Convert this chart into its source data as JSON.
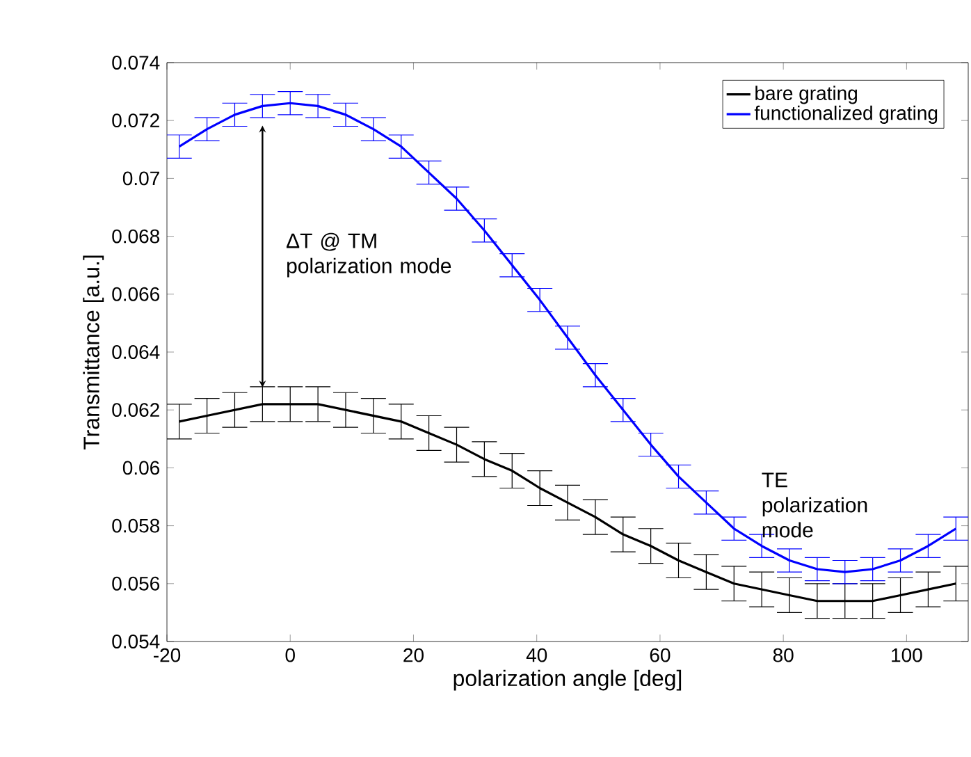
{
  "chart_data": {
    "type": "line",
    "xlabel": "polarization angle [deg]",
    "ylabel": "Transmittance [a.u.]",
    "x": [
      -18,
      -13.5,
      -9,
      -4.5,
      0,
      4.5,
      9,
      13.5,
      18,
      22.5,
      27,
      31.5,
      36,
      40.5,
      45,
      49.5,
      54,
      58.5,
      63,
      67.5,
      72,
      76.5,
      81,
      85.5,
      90,
      94.5,
      99,
      103.5,
      108
    ],
    "series": [
      {
        "name": "bare grating",
        "color": "#000000",
        "values": [
          0.0616,
          0.0618,
          0.062,
          0.0622,
          0.0622,
          0.0622,
          0.062,
          0.0618,
          0.0616,
          0.0612,
          0.0608,
          0.0603,
          0.0599,
          0.0593,
          0.0588,
          0.0583,
          0.0577,
          0.0573,
          0.0568,
          0.0564,
          0.056,
          0.0558,
          0.0556,
          0.0554,
          0.0554,
          0.0554,
          0.0556,
          0.0558,
          0.056
        ],
        "errors": [
          0.0006,
          0.0006,
          0.0006,
          0.0006,
          0.0006,
          0.0006,
          0.0006,
          0.0006,
          0.0006,
          0.0006,
          0.0006,
          0.0006,
          0.0006,
          0.0006,
          0.0006,
          0.0006,
          0.0006,
          0.0006,
          0.0006,
          0.0006,
          0.0006,
          0.0006,
          0.0006,
          0.0006,
          0.0006,
          0.0006,
          0.0006,
          0.0006,
          0.0006
        ]
      },
      {
        "name": "functionalized grating",
        "color": "#0000ff",
        "values": [
          0.0711,
          0.0717,
          0.0722,
          0.0725,
          0.0726,
          0.0725,
          0.0722,
          0.0717,
          0.0711,
          0.0702,
          0.0693,
          0.0682,
          0.067,
          0.0658,
          0.0645,
          0.0632,
          0.062,
          0.0608,
          0.0597,
          0.0588,
          0.0579,
          0.0573,
          0.0568,
          0.0565,
          0.0564,
          0.0565,
          0.0568,
          0.0573,
          0.0579
        ],
        "errors": [
          0.0004,
          0.0004,
          0.0004,
          0.0004,
          0.0004,
          0.0004,
          0.0004,
          0.0004,
          0.0004,
          0.0004,
          0.0004,
          0.0004,
          0.0004,
          0.0004,
          0.0004,
          0.0004,
          0.0004,
          0.0004,
          0.0004,
          0.0004,
          0.0004,
          0.0004,
          0.0004,
          0.0004,
          0.0004,
          0.0004,
          0.0004,
          0.0004,
          0.0004
        ]
      }
    ],
    "xlim": [
      -20,
      110
    ],
    "ylim": [
      0.054,
      0.074
    ],
    "xticks": [
      -20,
      0,
      20,
      40,
      60,
      80,
      100
    ],
    "yticks": [
      0.054,
      0.056,
      0.058,
      0.06,
      0.062,
      0.064,
      0.066,
      0.068,
      0.07,
      0.072,
      0.074
    ],
    "annotations": [
      "ΔT @ TM polarization mode",
      "TE polarization mode"
    ],
    "legend": "top right",
    "grid": false,
    "marker": "none",
    "line_style": "solid"
  }
}
